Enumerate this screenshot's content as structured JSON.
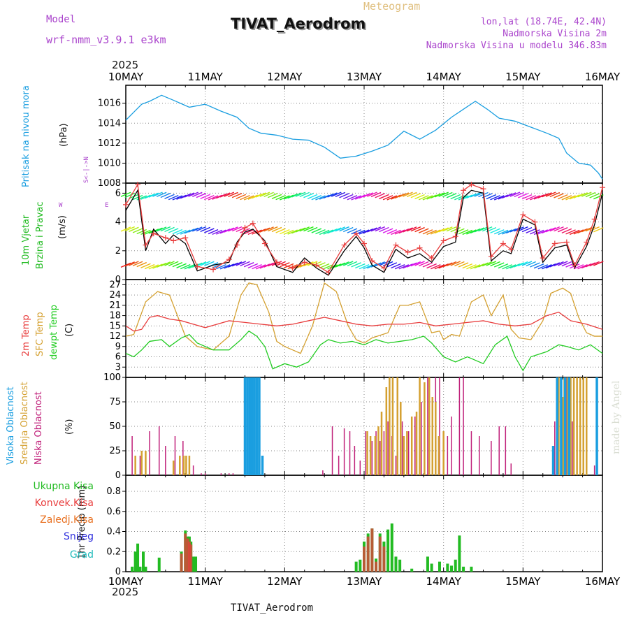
{
  "header": {
    "model_label": "Model",
    "model_name": "wrf-nmm_v3.9.1  e3km",
    "title": "TIVAT_Aerodrom",
    "meteogram_label": "Meteogram",
    "lonlat": "lon,lat (18.74E, 42.4N)",
    "elevation": "Nadmorska Visina 2m",
    "model_elevation": "Nadmorska Visina u modelu 346.83m",
    "year_top": "2025",
    "year_bottom": "2025",
    "footer_station": "TIVAT_Aerodrom",
    "credit": "made by Angel"
  },
  "colors": {
    "pressure": "#1a9ee0",
    "wind_label": "#22bb22",
    "wind_speed": "#000000",
    "wind_gust": "#e83c3c",
    "temp2m": "#e83c3c",
    "sfc_temp": "#d4a030",
    "dewpoint": "#22cc22",
    "cloud_high": "#1a9ee0",
    "cloud_mid": "#d4a030",
    "cloud_low": "#c0207a",
    "precip_total": "#22bb22",
    "precip_conv": "#e83c3c",
    "precip_frozen": "#e87020",
    "precip_snow": "#3030dd",
    "precip_grad": "#22bbbb",
    "meta_purple": "#aa44cc",
    "meteogram": "#e0c080"
  },
  "chart_data": [
    {
      "type": "line",
      "title": "Pritisak na nivou mora",
      "ylabel": "(hPa)",
      "ylim": [
        1008,
        1017.8
      ],
      "yticks": [
        1008,
        1010,
        1012,
        1014,
        1016
      ],
      "x_days": [
        "10MAY",
        "11MAY",
        "12MAY",
        "13MAY",
        "14MAY",
        "15MAY",
        "16MAY"
      ],
      "series": [
        {
          "name": "Pressure",
          "x": [
            0,
            0.1,
            0.2,
            0.3,
            0.45,
            0.6,
            0.8,
            1.0,
            1.2,
            1.4,
            1.55,
            1.7,
            1.9,
            2.1,
            2.3,
            2.5,
            2.7,
            2.9,
            3.1,
            3.3,
            3.5,
            3.7,
            3.9,
            4.1,
            4.25,
            4.4,
            4.55,
            4.7,
            4.9,
            5.1,
            5.3,
            5.45,
            5.55,
            5.7,
            5.85,
            5.95,
            6.0
          ],
          "values": [
            1014.3,
            1015.1,
            1015.9,
            1016.2,
            1016.8,
            1016.3,
            1015.6,
            1015.9,
            1015.2,
            1014.6,
            1013.5,
            1013.0,
            1012.8,
            1012.4,
            1012.3,
            1011.6,
            1010.5,
            1010.7,
            1011.2,
            1011.8,
            1013.2,
            1012.4,
            1013.3,
            1014.6,
            1015.4,
            1016.2,
            1015.4,
            1014.5,
            1014.2,
            1013.6,
            1013.0,
            1012.5,
            1011.0,
            1010.0,
            1009.8,
            1009.0,
            1008.4
          ]
        }
      ]
    },
    {
      "type": "line",
      "title": "10m Vjetar Brzina i Pravac",
      "ylabel": "(m/s)",
      "ylim": [
        0,
        6.7
      ],
      "yticks": [
        0,
        2,
        4,
        6
      ],
      "direction_key": [
        "N",
        "S",
        "W",
        "E"
      ],
      "series": [
        {
          "name": "Wind speed",
          "x": [
            0,
            0.15,
            0.25,
            0.35,
            0.5,
            0.6,
            0.75,
            0.9,
            1.1,
            1.3,
            1.4,
            1.5,
            1.6,
            1.75,
            1.9,
            2.1,
            2.25,
            2.4,
            2.55,
            2.75,
            2.9,
            3.0,
            3.1,
            3.25,
            3.4,
            3.55,
            3.7,
            3.85,
            4.0,
            4.15,
            4.25,
            4.35,
            4.5,
            4.6,
            4.75,
            4.85,
            5.0,
            5.15,
            5.25,
            5.4,
            5.55,
            5.65,
            5.8,
            5.9,
            6.0
          ],
          "values": [
            4.8,
            6.2,
            2.0,
            3.5,
            2.5,
            3.1,
            2.5,
            0.6,
            1.0,
            1.2,
            2.6,
            3.3,
            3.5,
            2.7,
            0.9,
            0.5,
            1.5,
            0.8,
            0.3,
            2.0,
            3.0,
            2.2,
            1.0,
            0.5,
            2.1,
            1.5,
            1.8,
            1.2,
            2.3,
            2.6,
            5.7,
            6.2,
            6.0,
            1.3,
            2.0,
            1.8,
            4.2,
            3.8,
            1.2,
            2.2,
            2.4,
            0.8,
            2.3,
            3.8,
            6.0
          ]
        },
        {
          "name": "Wind gust",
          "x": [
            0,
            0.15,
            0.25,
            0.35,
            0.5,
            0.6,
            0.75,
            0.9,
            1.1,
            1.3,
            1.4,
            1.5,
            1.6,
            1.75,
            1.9,
            2.1,
            2.25,
            2.4,
            2.55,
            2.75,
            2.9,
            3.0,
            3.1,
            3.25,
            3.4,
            3.55,
            3.7,
            3.85,
            4.0,
            4.15,
            4.25,
            4.35,
            4.5,
            4.6,
            4.75,
            4.85,
            5.0,
            5.15,
            5.25,
            5.4,
            5.55,
            5.65,
            5.8,
            5.9,
            6.0
          ],
          "values": [
            5.2,
            6.6,
            2.4,
            3.2,
            2.9,
            2.7,
            2.9,
            0.9,
            0.7,
            1.4,
            2.4,
            3.6,
            3.9,
            2.5,
            1.2,
            0.8,
            1.2,
            1.0,
            0.5,
            2.4,
            3.2,
            2.5,
            1.3,
            0.8,
            2.4,
            1.9,
            2.2,
            1.5,
            2.7,
            3.0,
            6.2,
            6.6,
            6.3,
            1.6,
            2.5,
            2.1,
            4.5,
            4.0,
            1.5,
            2.5,
            2.6,
            1.0,
            2.6,
            4.2,
            6.4
          ]
        }
      ]
    },
    {
      "type": "line",
      "title": "2m Temp / SFC Temp / dewpt Temp",
      "ylabel": "(C)",
      "ylim": [
        0,
        28.5
      ],
      "yticks": [
        0,
        3,
        6,
        9,
        12,
        15,
        18,
        21,
        24,
        27
      ],
      "series": [
        {
          "name": "2m Temp",
          "x": [
            0,
            0.1,
            0.2,
            0.3,
            0.4,
            0.55,
            0.7,
            0.85,
            1.0,
            1.15,
            1.3,
            1.5,
            1.7,
            1.9,
            2.1,
            2.3,
            2.5,
            2.7,
            2.9,
            3.1,
            3.3,
            3.5,
            3.7,
            3.9,
            4.1,
            4.3,
            4.5,
            4.7,
            4.9,
            5.1,
            5.3,
            5.45,
            5.6,
            5.8,
            6.0
          ],
          "values": [
            15.0,
            13.5,
            14.0,
            17.5,
            18.0,
            17.0,
            16.5,
            15.5,
            14.5,
            15.5,
            16.5,
            16.0,
            15.5,
            15.0,
            15.5,
            16.5,
            17.5,
            16.5,
            15.5,
            15.0,
            15.5,
            15.5,
            16.0,
            15.0,
            15.5,
            16.0,
            16.5,
            15.5,
            15.0,
            15.5,
            18.0,
            19.0,
            16.5,
            15.5,
            14.0
          ]
        },
        {
          "name": "SFC Temp",
          "x": [
            0,
            0.1,
            0.25,
            0.4,
            0.55,
            0.65,
            0.75,
            0.9,
            1.1,
            1.3,
            1.45,
            1.55,
            1.65,
            1.8,
            1.9,
            2.0,
            2.1,
            2.2,
            2.35,
            2.5,
            2.65,
            2.8,
            2.9,
            3.0,
            3.1,
            3.3,
            3.45,
            3.55,
            3.7,
            3.85,
            3.95,
            4.0,
            4.1,
            4.2,
            4.35,
            4.5,
            4.6,
            4.75,
            4.85,
            4.95,
            5.1,
            5.25,
            5.35,
            5.5,
            5.6,
            5.7,
            5.8,
            5.9,
            6.0
          ],
          "values": [
            12.0,
            12.5,
            22.0,
            25.0,
            24.0,
            18.0,
            12.0,
            9.0,
            8.0,
            12.0,
            24.0,
            27.5,
            27.0,
            19.0,
            10.5,
            9.0,
            8.0,
            7.0,
            15.0,
            27.5,
            25.0,
            15.0,
            11.0,
            10.0,
            11.5,
            13.0,
            21.0,
            21.0,
            22.0,
            13.0,
            13.5,
            11.0,
            12.5,
            12.0,
            22.0,
            24.0,
            18.0,
            24.0,
            14.0,
            11.5,
            11.0,
            16.5,
            24.5,
            26.0,
            24.5,
            17.5,
            13.0,
            12.0,
            12.0
          ]
        },
        {
          "name": "dewpt Temp",
          "x": [
            0,
            0.1,
            0.2,
            0.3,
            0.45,
            0.55,
            0.7,
            0.8,
            0.9,
            1.1,
            1.3,
            1.45,
            1.55,
            1.65,
            1.75,
            1.85,
            2.0,
            2.15,
            2.3,
            2.45,
            2.55,
            2.7,
            2.85,
            3.0,
            3.15,
            3.3,
            3.45,
            3.6,
            3.75,
            3.85,
            4.0,
            4.15,
            4.3,
            4.5,
            4.65,
            4.8,
            4.9,
            5.0,
            5.1,
            5.3,
            5.45,
            5.55,
            5.7,
            5.85,
            6.0
          ],
          "values": [
            7.0,
            6.0,
            8.0,
            10.5,
            11.0,
            9.0,
            11.5,
            12.5,
            10.0,
            8.0,
            8.0,
            11.0,
            13.5,
            12.0,
            9.0,
            2.5,
            4.0,
            3.0,
            4.5,
            9.5,
            11.0,
            10.0,
            10.5,
            9.5,
            11.0,
            10.0,
            10.5,
            11.0,
            12.0,
            10.0,
            6.0,
            4.5,
            6.0,
            4.0,
            9.5,
            12.0,
            6.0,
            2.0,
            6.0,
            7.5,
            9.5,
            9.0,
            8.0,
            9.5,
            7.0
          ]
        }
      ]
    },
    {
      "type": "bar",
      "title": "Visoka / Srednja / Niska Oblacnost",
      "ylabel": "(%)",
      "ylim": [
        0,
        100
      ],
      "yticks": [
        0,
        25,
        50,
        75,
        100
      ],
      "series": [
        {
          "name": "Niska Oblacnost",
          "x": [
            0.08,
            0.18,
            0.3,
            0.42,
            0.5,
            0.62,
            0.72,
            0.8,
            0.85,
            0.95,
            1.0,
            1.2,
            1.3,
            1.35,
            2.48,
            2.6,
            2.68,
            2.75,
            2.82,
            2.88,
            2.95,
            3.02,
            3.1,
            3.15,
            3.2,
            3.25,
            3.3,
            3.35,
            3.4,
            3.48,
            3.56,
            3.64,
            3.72,
            3.8,
            3.9,
            3.95,
            4.05,
            4.1,
            4.2,
            4.25,
            4.35,
            4.45,
            4.6,
            4.7,
            4.78,
            4.85,
            5.4,
            5.48,
            5.55,
            5.62,
            5.72,
            5.8,
            5.9
          ],
          "values": [
            40,
            20,
            45,
            50,
            30,
            40,
            35,
            15,
            10,
            2,
            2,
            2,
            2,
            2,
            5,
            50,
            20,
            48,
            45,
            30,
            15,
            45,
            35,
            45,
            35,
            45,
            55,
            40,
            20,
            55,
            45,
            60,
            75,
            100,
            100,
            100,
            40,
            60,
            100,
            100,
            45,
            40,
            35,
            50,
            50,
            12,
            55,
            100,
            100,
            55,
            30,
            15,
            10
          ]
        },
        {
          "name": "Srednja Oblacnost",
          "x": [
            0.12,
            0.2,
            0.25,
            0.6,
            0.68,
            0.73,
            0.76,
            0.8,
            3.04,
            3.08,
            3.14,
            3.18,
            3.22,
            3.28,
            3.32,
            3.36,
            3.42,
            3.46,
            3.5,
            3.54,
            3.6,
            3.66,
            3.7,
            3.76,
            3.82,
            3.86,
            3.9,
            3.94,
            4.0,
            5.45,
            5.5,
            5.52,
            5.56,
            5.6,
            5.64,
            5.68,
            5.72,
            5.76,
            5.8
          ],
          "values": [
            20,
            25,
            25,
            15,
            20,
            20,
            20,
            20,
            45,
            40,
            40,
            50,
            65,
            90,
            100,
            100,
            100,
            75,
            40,
            45,
            60,
            65,
            100,
            95,
            100,
            80,
            75,
            40,
            45,
            100,
            80,
            100,
            100,
            100,
            100,
            100,
            100,
            100,
            100
          ]
        },
        {
          "name": "Visoka Oblacnost",
          "x": [
            1.5,
            1.53,
            1.56,
            1.59,
            1.62,
            1.65,
            1.68,
            1.72,
            5.38,
            5.43,
            5.48,
            5.53,
            5.58,
            5.93
          ],
          "values": [
            100,
            100,
            100,
            100,
            100,
            100,
            100,
            20,
            30,
            100,
            100,
            100,
            100,
            100
          ]
        }
      ]
    },
    {
      "type": "bar",
      "title": "1hr Precip",
      "ylabel": "(mm)",
      "ylim": [
        0,
        0.96
      ],
      "yticks": [
        0,
        0.2,
        0.4,
        0.6,
        0.8
      ],
      "legend": [
        "Ukupna Kisa",
        "Konvek.Kisa",
        "Zaledj.Kisa",
        "Snijeg",
        "Grad"
      ],
      "series": [
        {
          "name": "Ukupna Kisa",
          "x": [
            0.08,
            0.12,
            0.15,
            0.18,
            0.22,
            0.25,
            0.42,
            0.7,
            0.75,
            0.78,
            0.8,
            0.82,
            0.85,
            0.88,
            2.9,
            2.95,
            3.0,
            3.05,
            3.1,
            3.15,
            3.2,
            3.25,
            3.3,
            3.35,
            3.4,
            3.45,
            3.6,
            3.8,
            3.85,
            3.95,
            4.05,
            4.1,
            4.15,
            4.2,
            4.25,
            4.35
          ],
          "values": [
            0.05,
            0.2,
            0.28,
            0.05,
            0.2,
            0.05,
            0.14,
            0.2,
            0.41,
            0.35,
            0.35,
            0.3,
            0.15,
            0.15,
            0.1,
            0.12,
            0.3,
            0.38,
            0.43,
            0.13,
            0.38,
            0.3,
            0.42,
            0.48,
            0.15,
            0.12,
            0.03,
            0.15,
            0.08,
            0.1,
            0.08,
            0.06,
            0.12,
            0.36,
            0.05,
            0.05
          ]
        },
        {
          "name": "Konvek.Kisa",
          "x": [
            0.7,
            0.75,
            0.78,
            0.8,
            0.82,
            3.0,
            3.05,
            3.1,
            3.15,
            3.2,
            3.25
          ],
          "values": [
            0.18,
            0.38,
            0.33,
            0.3,
            0.27,
            0.25,
            0.35,
            0.43,
            0.1,
            0.35,
            0.25
          ]
        }
      ]
    }
  ]
}
